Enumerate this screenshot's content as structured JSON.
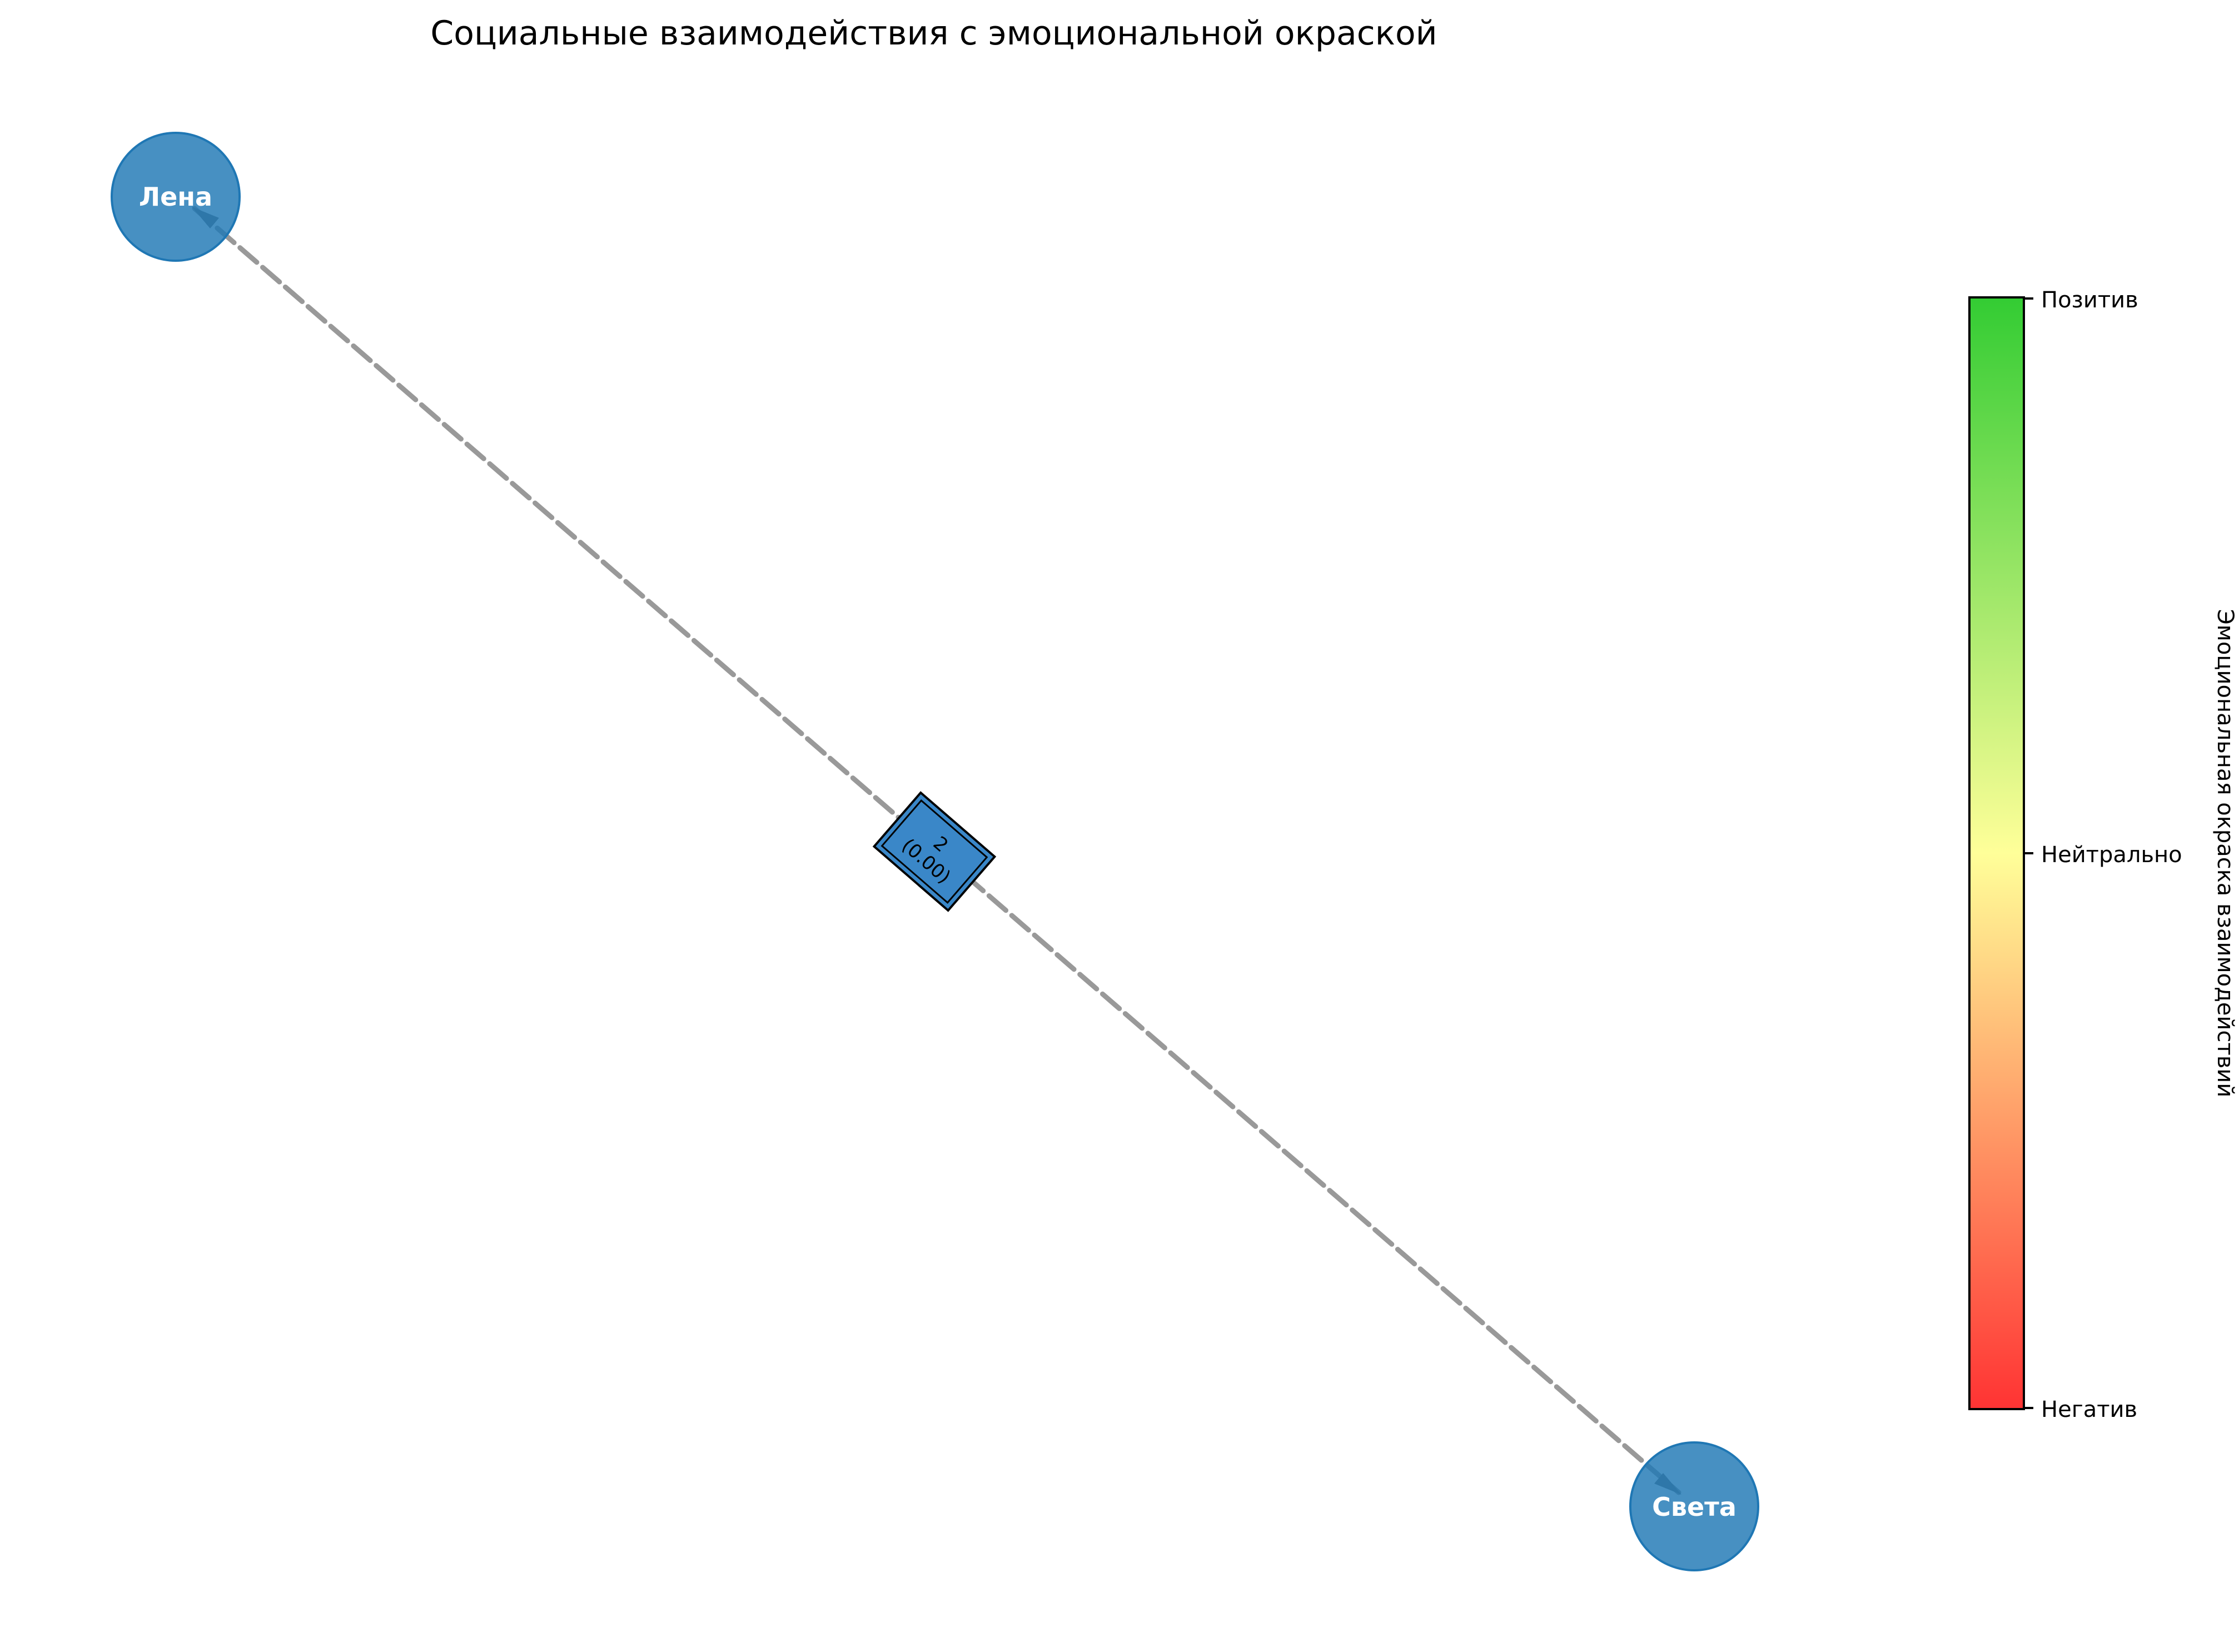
{
  "title": "Социальные взаимодействия с эмоциональной окраской",
  "nodes": [
    {
      "id": "lena",
      "label": "Лена"
    },
    {
      "id": "sveta",
      "label": "Света"
    }
  ],
  "edge": {
    "from": "Лена",
    "to": "Света",
    "count_label": "2",
    "sentiment_label": "(0.00)",
    "style": "dashed",
    "color": "#999999"
  },
  "colorbar": {
    "label": "Эмоциональная окраска взаимодействий",
    "ticks": [
      "Позитив",
      "Нейтрально",
      "Негатив"
    ],
    "colors": {
      "top": "#33cc33",
      "middle": "#ffff99",
      "bottom": "#ff3333"
    }
  },
  "colors": {
    "node_fill": "#1f77b4",
    "node_text": "#ffffff",
    "label_box": "#3a87c8"
  }
}
